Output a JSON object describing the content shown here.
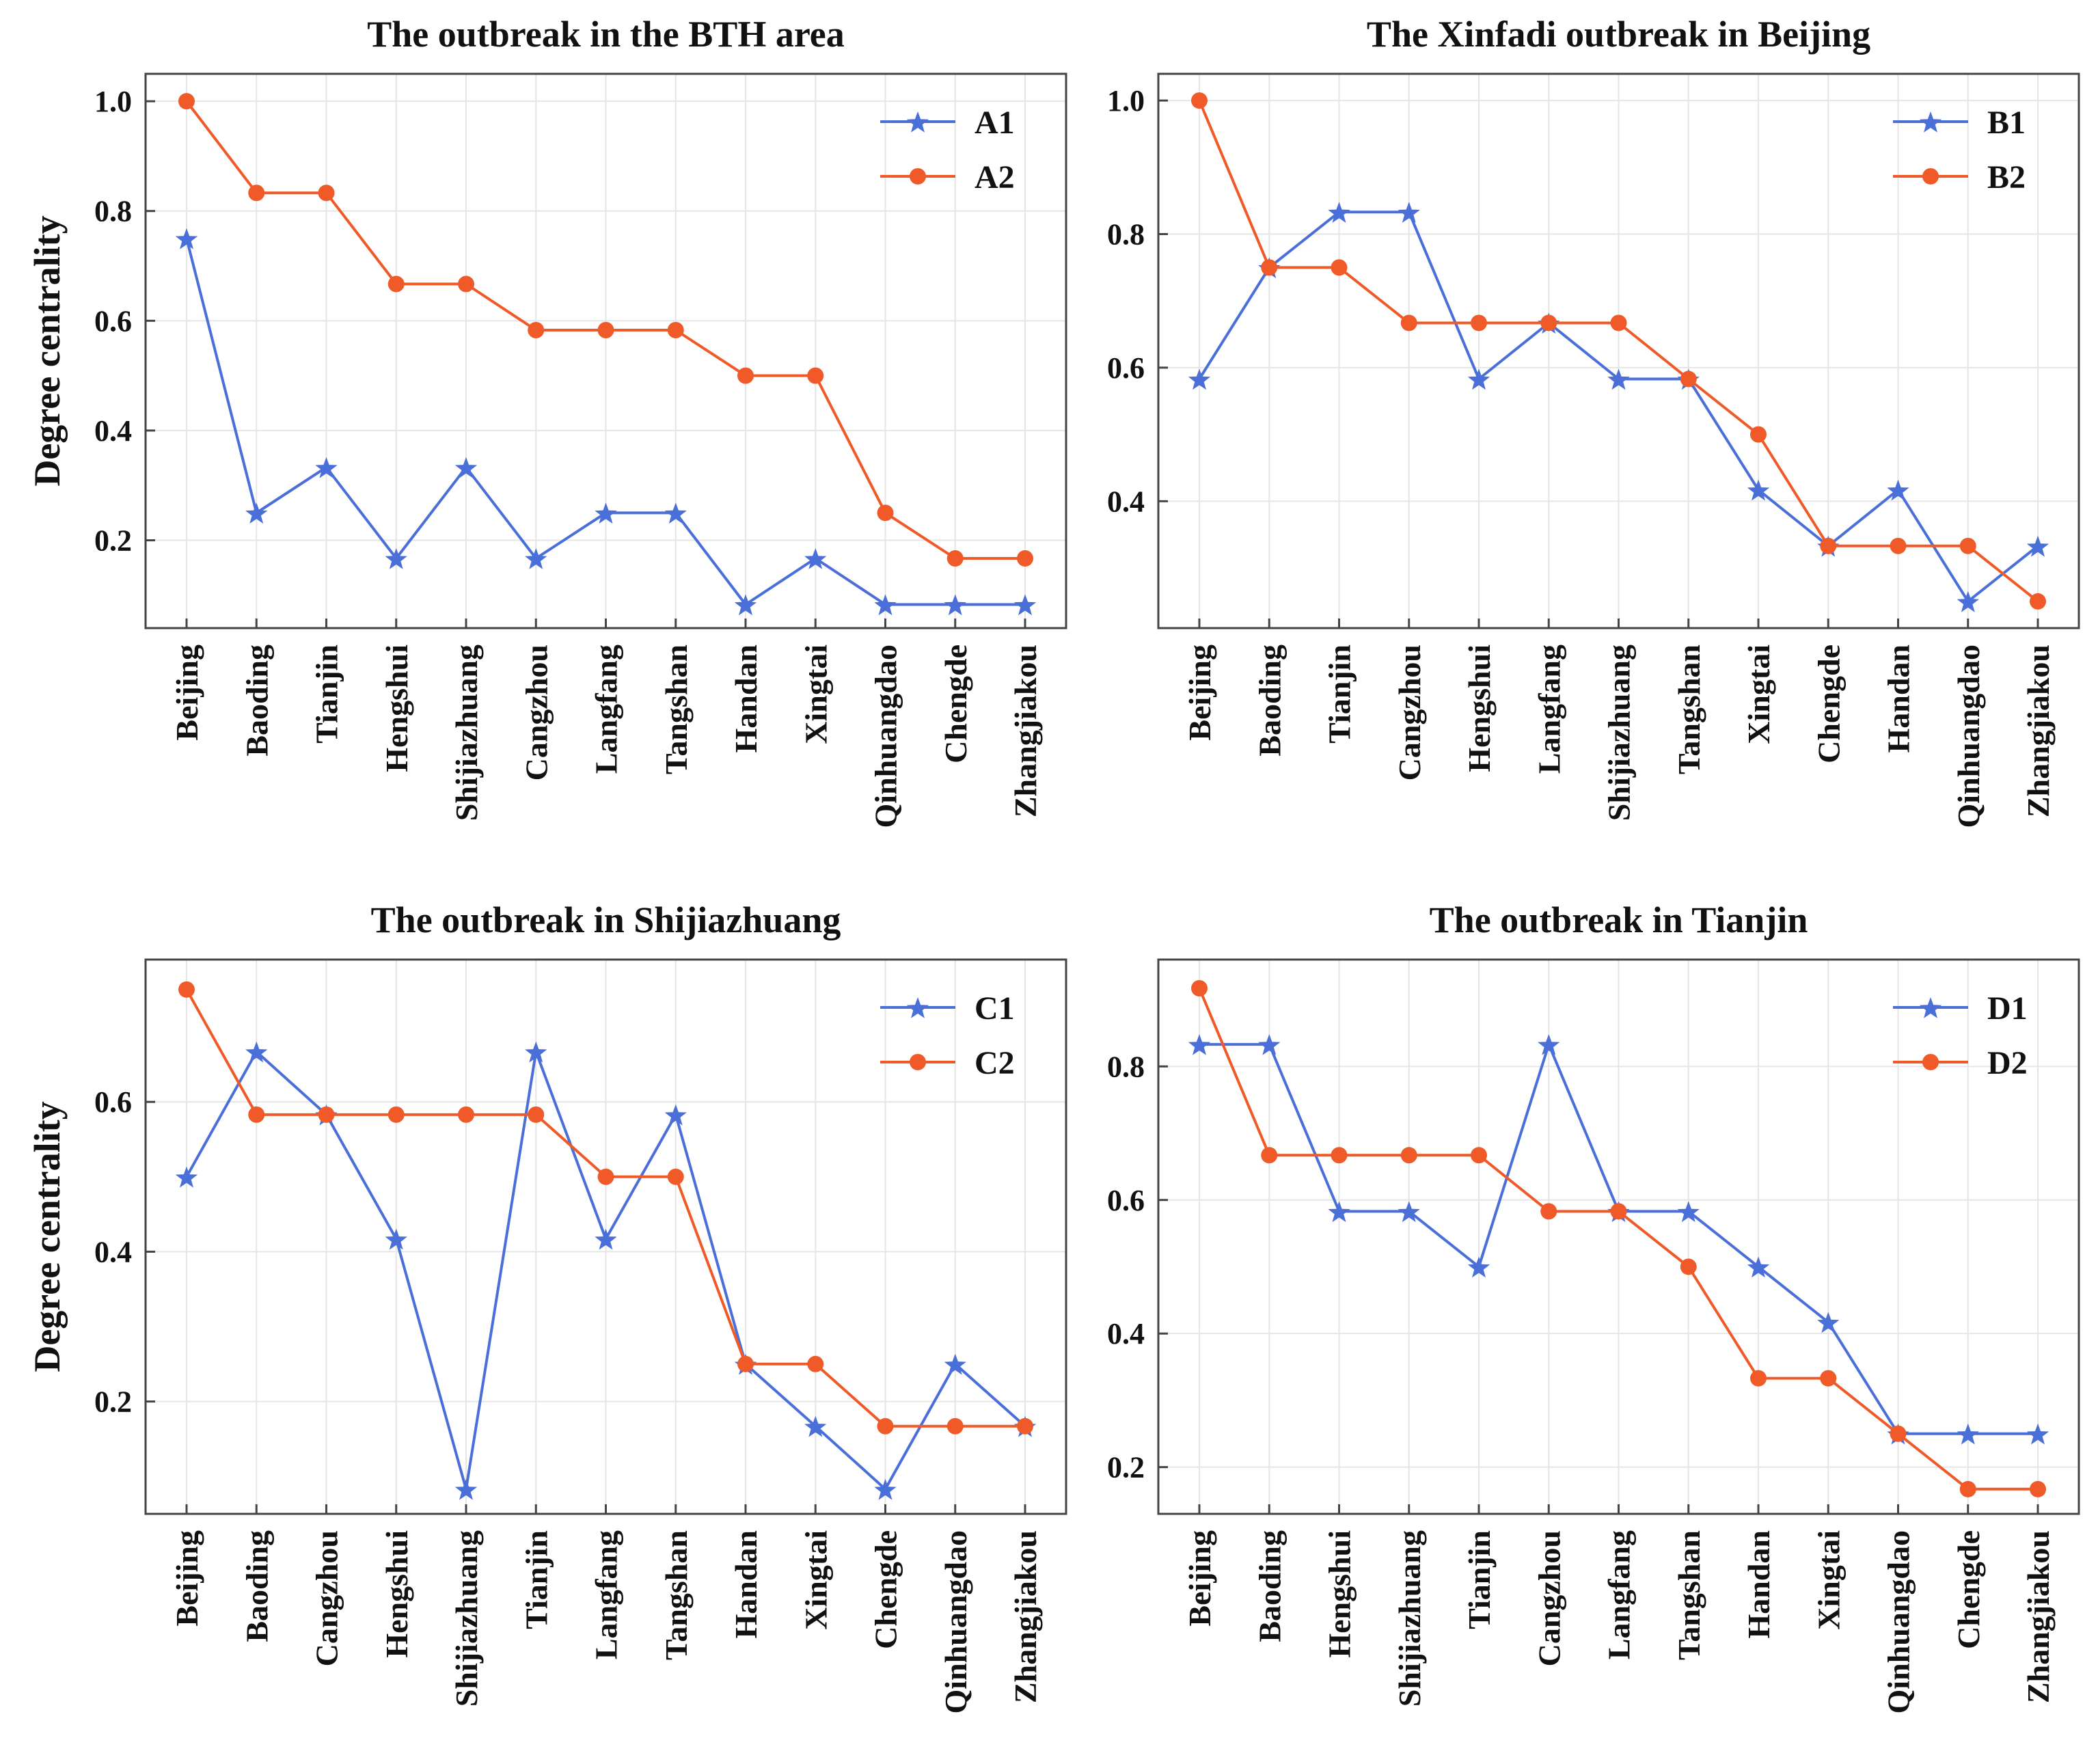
{
  "colors": {
    "series1": "#4a6fd8",
    "series2": "#ef5a28",
    "axis": "#444444",
    "grid": "#e6e6e6"
  },
  "marker_icons": {
    "series1": "star-icon",
    "series2": "circle-icon"
  },
  "chart_data": [
    {
      "type": "line",
      "title": "The outbreak in the BTH area",
      "xlabel": "",
      "ylabel": "Degree centrality",
      "ylim": [
        0.04,
        1.05
      ],
      "yticks": [
        0.2,
        0.4,
        0.6,
        0.8,
        1.0
      ],
      "ytick_labels": [
        "0.2",
        "0.4",
        "0.6",
        "0.8",
        "1.0"
      ],
      "legend_position": "top-right",
      "grid": true,
      "categories": [
        "Beijing",
        "Baoding",
        "Tianjin",
        "Hengshui",
        "Shijiazhuang",
        "Cangzhou",
        "Langfang",
        "Tangshan",
        "Handan",
        "Xingtai",
        "Qinhuangdao",
        "Chengde",
        "Zhangjiakou"
      ],
      "series": [
        {
          "name": "A1",
          "marker": "star",
          "values": [
            0.75,
            0.25,
            0.333,
            0.167,
            0.333,
            0.167,
            0.25,
            0.25,
            0.083,
            0.167,
            0.083,
            0.083,
            0.083
          ]
        },
        {
          "name": "A2",
          "marker": "circle",
          "values": [
            1.0,
            0.833,
            0.833,
            0.667,
            0.667,
            0.583,
            0.583,
            0.583,
            0.5,
            0.5,
            0.25,
            0.167,
            0.167
          ]
        }
      ]
    },
    {
      "type": "line",
      "title": "The Xinfadi outbreak in Beijing",
      "xlabel": "",
      "ylabel": "",
      "ylim": [
        0.21,
        1.04
      ],
      "yticks": [
        0.4,
        0.6,
        0.8,
        1.0
      ],
      "ytick_labels": [
        "0.4",
        "0.6",
        "0.8",
        "1.0"
      ],
      "legend_position": "top-right",
      "grid": true,
      "categories": [
        "Beijing",
        "Baoding",
        "Tianjin",
        "Cangzhou",
        "Hengshui",
        "Langfang",
        "Shijiazhuang",
        "Tangshan",
        "Xingtai",
        "Chengde",
        "Handan",
        "Qinhuangdao",
        "Zhangjiakou"
      ],
      "series": [
        {
          "name": "B1",
          "marker": "star",
          "values": [
            0.583,
            0.75,
            0.833,
            0.833,
            0.583,
            0.667,
            0.583,
            0.583,
            0.417,
            0.333,
            0.417,
            0.25,
            0.333
          ]
        },
        {
          "name": "B2",
          "marker": "circle",
          "values": [
            1.0,
            0.75,
            0.75,
            0.667,
            0.667,
            0.667,
            0.667,
            0.583,
            0.5,
            0.333,
            0.333,
            0.333,
            0.25
          ]
        }
      ]
    },
    {
      "type": "line",
      "title": "The outbreak in Shijiazhuang",
      "xlabel": "",
      "ylabel": "Degree centrality",
      "ylim": [
        0.05,
        0.79
      ],
      "yticks": [
        0.2,
        0.4,
        0.6
      ],
      "ytick_labels": [
        "0.2",
        "0.4",
        "0.6"
      ],
      "legend_position": "top-right",
      "grid": true,
      "categories": [
        "Beijing",
        "Baoding",
        "Cangzhou",
        "Hengshui",
        "Shijiazhuang",
        "Tianjin",
        "Langfang",
        "Tangshan",
        "Handan",
        "Xingtai",
        "Chengde",
        "Qinhuangdao",
        "Zhangjiakou"
      ],
      "series": [
        {
          "name": "C1",
          "marker": "star",
          "values": [
            0.5,
            0.667,
            0.583,
            0.417,
            0.083,
            0.667,
            0.417,
            0.583,
            0.25,
            0.167,
            0.083,
            0.25,
            0.167
          ]
        },
        {
          "name": "C2",
          "marker": "circle",
          "values": [
            0.75,
            0.583,
            0.583,
            0.583,
            0.583,
            0.583,
            0.5,
            0.5,
            0.25,
            0.25,
            0.167,
            0.167,
            0.167
          ]
        }
      ]
    },
    {
      "type": "line",
      "title": "The outbreak in Tianjin",
      "xlabel": "",
      "ylabel": "",
      "ylim": [
        0.13,
        0.96
      ],
      "yticks": [
        0.2,
        0.4,
        0.6,
        0.8
      ],
      "ytick_labels": [
        "0.2",
        "0.4",
        "0.6",
        "0.8"
      ],
      "legend_position": "top-right",
      "grid": true,
      "categories": [
        "Beijing",
        "Baoding",
        "Hengshui",
        "Shijiazhuang",
        "Tianjin",
        "Cangzhou",
        "Langfang",
        "Tangshan",
        "Handan",
        "Xingtai",
        "Qinhuangdao",
        "Chengde",
        "Zhangjiakou"
      ],
      "series": [
        {
          "name": "D1",
          "marker": "star",
          "values": [
            0.833,
            0.833,
            0.583,
            0.583,
            0.5,
            0.833,
            0.583,
            0.583,
            0.5,
            0.417,
            0.25,
            0.25,
            0.25
          ]
        },
        {
          "name": "D2",
          "marker": "circle",
          "values": [
            0.917,
            0.667,
            0.667,
            0.667,
            0.667,
            0.583,
            0.583,
            0.5,
            0.333,
            0.333,
            0.25,
            0.167,
            0.167
          ]
        }
      ]
    }
  ]
}
